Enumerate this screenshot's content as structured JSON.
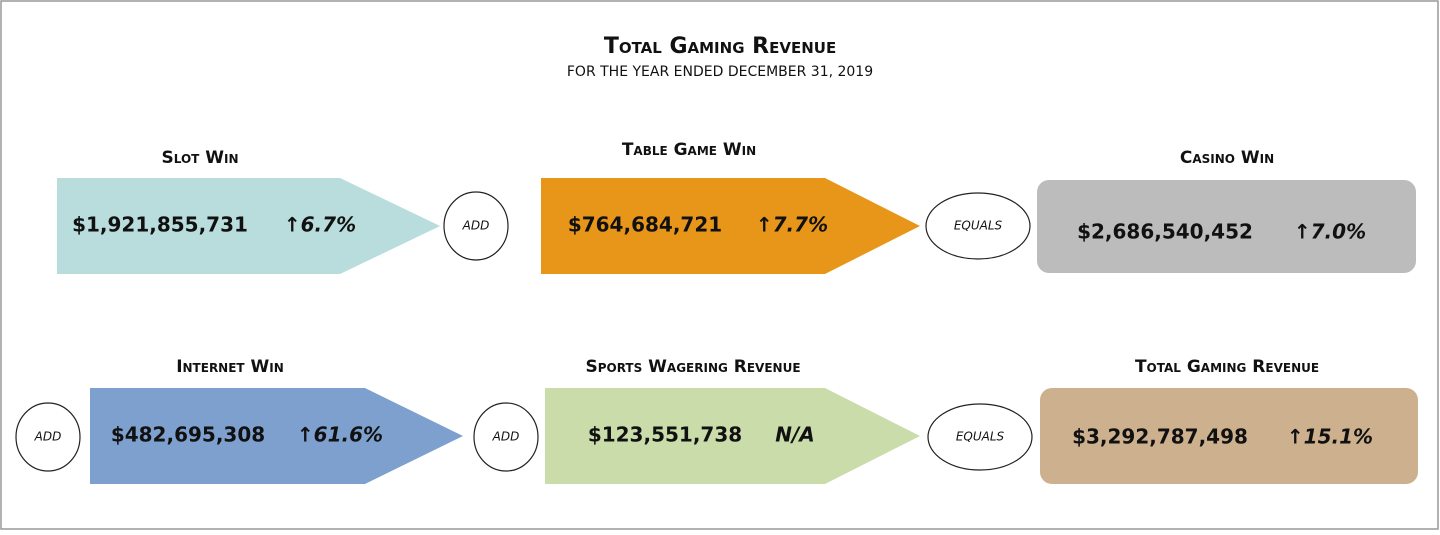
{
  "header": {
    "title": "Total Gaming Revenue",
    "subtitle": "FOR THE YEAR ENDED DECEMBER 31, 2019"
  },
  "items": [
    {
      "label": "Slot Win",
      "amount": "$1,921,855,731",
      "change": "↑6.7%"
    },
    {
      "label": "Table Game Win",
      "amount": "$764,684,721",
      "change": "↑7.7%"
    },
    {
      "label": "Casino Win",
      "amount": "$2,686,540,452",
      "change": "↑7.0%"
    },
    {
      "label": "Internet Win",
      "amount": "$482,695,308",
      "change": "↑61.6%"
    },
    {
      "label": "Sports Wagering Revenue",
      "amount": "$123,551,738",
      "change": "N/A"
    },
    {
      "label": "Total Gaming Revenue",
      "amount": "$3,292,787,498",
      "change": "↑15.1%"
    }
  ],
  "operators": [
    "ADD",
    "EQUALS",
    "ADD",
    "ADD",
    "EQUALS"
  ]
}
